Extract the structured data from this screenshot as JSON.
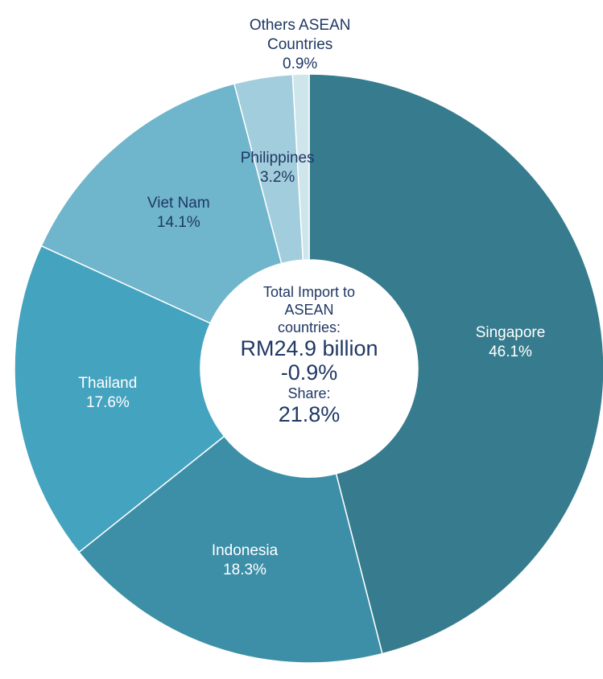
{
  "chart_data": {
    "type": "donut",
    "categories": [
      "Singapore",
      "Indonesia",
      "Thailand",
      "Viet Nam",
      "Philippines",
      "Others ASEAN Countries"
    ],
    "values": [
      46.1,
      18.3,
      17.6,
      14.1,
      3.2,
      0.9
    ],
    "value_labels": [
      "46.1%",
      "18.3%",
      "17.6%",
      "14.1%",
      "3.2%",
      "0.9%"
    ],
    "colors": [
      "#367c8e",
      "#3d8fa8",
      "#44a3bf",
      "#6fb5cc",
      "#a2cddc",
      "#cfe5ec"
    ],
    "center": {
      "title": "Total Import to ASEAN countries:",
      "total": "RM24.9 billion",
      "change": "-0.9%",
      "share_label": "Share:",
      "share": "21.8%"
    }
  }
}
